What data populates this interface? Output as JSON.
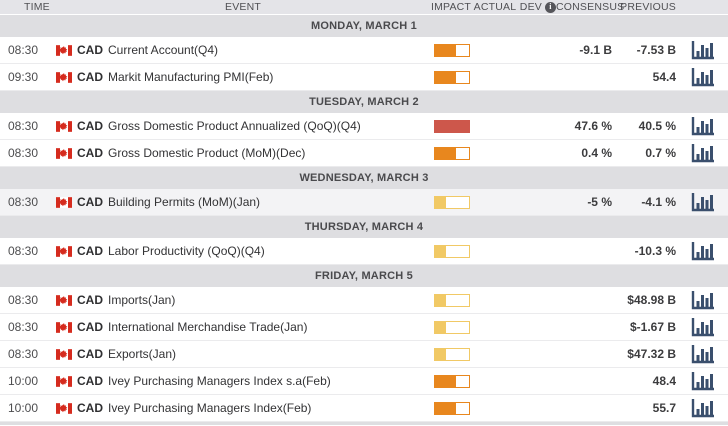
{
  "header": {
    "time": "TIME",
    "event": "EVENT",
    "impact": "IMPACT",
    "actual": "ACTUAL",
    "dev": "DEV",
    "dev_info_icon": "i",
    "consensus": "CONSENSUS",
    "previous": "PREVIOUS"
  },
  "impact_levels": {
    "high": {
      "color": "#cd574b",
      "fill_pct": 100
    },
    "medium": {
      "color": "#e8871e",
      "fill_pct": 62
    },
    "low": {
      "color": "#f1c965",
      "fill_pct": 33
    }
  },
  "colors": {
    "header_bg": "#e4e4e8",
    "day_band_bg": "#dedee1",
    "row_highlight_bg": "#f3f3f5",
    "chart_icon": "#3a4f6d",
    "flag_red": "#d52b1e"
  },
  "days": [
    {
      "label": "MONDAY, MARCH 1",
      "events": [
        {
          "time": "08:30",
          "currency": "CAD",
          "name": "Current Account(Q4)",
          "impact": "medium",
          "actual": "",
          "consensus": "-9.1 B",
          "previous": "-7.53 B",
          "highlighted": false
        },
        {
          "time": "09:30",
          "currency": "CAD",
          "name": "Markit Manufacturing PMI(Feb)",
          "impact": "medium",
          "actual": "",
          "consensus": "",
          "previous": "54.4",
          "highlighted": false
        }
      ]
    },
    {
      "label": "TUESDAY, MARCH 2",
      "events": [
        {
          "time": "08:30",
          "currency": "CAD",
          "name": "Gross Domestic Product Annualized (QoQ)(Q4)",
          "impact": "high",
          "actual": "",
          "consensus": "47.6 %",
          "previous": "40.5 %",
          "highlighted": false
        },
        {
          "time": "08:30",
          "currency": "CAD",
          "name": "Gross Domestic Product (MoM)(Dec)",
          "impact": "medium",
          "actual": "",
          "consensus": "0.4 %",
          "previous": "0.7 %",
          "highlighted": false
        }
      ]
    },
    {
      "label": "WEDNESDAY, MARCH 3",
      "events": [
        {
          "time": "08:30",
          "currency": "CAD",
          "name": "Building Permits (MoM)(Jan)",
          "impact": "low",
          "actual": "",
          "consensus": "-5 %",
          "previous": "-4.1 %",
          "highlighted": true
        }
      ]
    },
    {
      "label": "THURSDAY, MARCH 4",
      "events": [
        {
          "time": "08:30",
          "currency": "CAD",
          "name": "Labor Productivity (QoQ)(Q4)",
          "impact": "low",
          "actual": "",
          "consensus": "",
          "previous": "-10.3 %",
          "highlighted": false
        }
      ]
    },
    {
      "label": "FRIDAY, MARCH 5",
      "events": [
        {
          "time": "08:30",
          "currency": "CAD",
          "name": "Imports(Jan)",
          "impact": "low",
          "actual": "",
          "consensus": "",
          "previous": "$48.98 B",
          "highlighted": false
        },
        {
          "time": "08:30",
          "currency": "CAD",
          "name": "International Merchandise Trade(Jan)",
          "impact": "low",
          "actual": "",
          "consensus": "",
          "previous": "$-1.67 B",
          "highlighted": false
        },
        {
          "time": "08:30",
          "currency": "CAD",
          "name": "Exports(Jan)",
          "impact": "low",
          "actual": "",
          "consensus": "",
          "previous": "$47.32 B",
          "highlighted": false
        },
        {
          "time": "10:00",
          "currency": "CAD",
          "name": "Ivey Purchasing Managers Index s.a(Feb)",
          "impact": "medium",
          "actual": "",
          "consensus": "",
          "previous": "48.4",
          "highlighted": false
        },
        {
          "time": "10:00",
          "currency": "CAD",
          "name": "Ivey Purchasing Managers Index(Feb)",
          "impact": "medium",
          "actual": "",
          "consensus": "",
          "previous": "55.7",
          "highlighted": false
        }
      ]
    }
  ]
}
